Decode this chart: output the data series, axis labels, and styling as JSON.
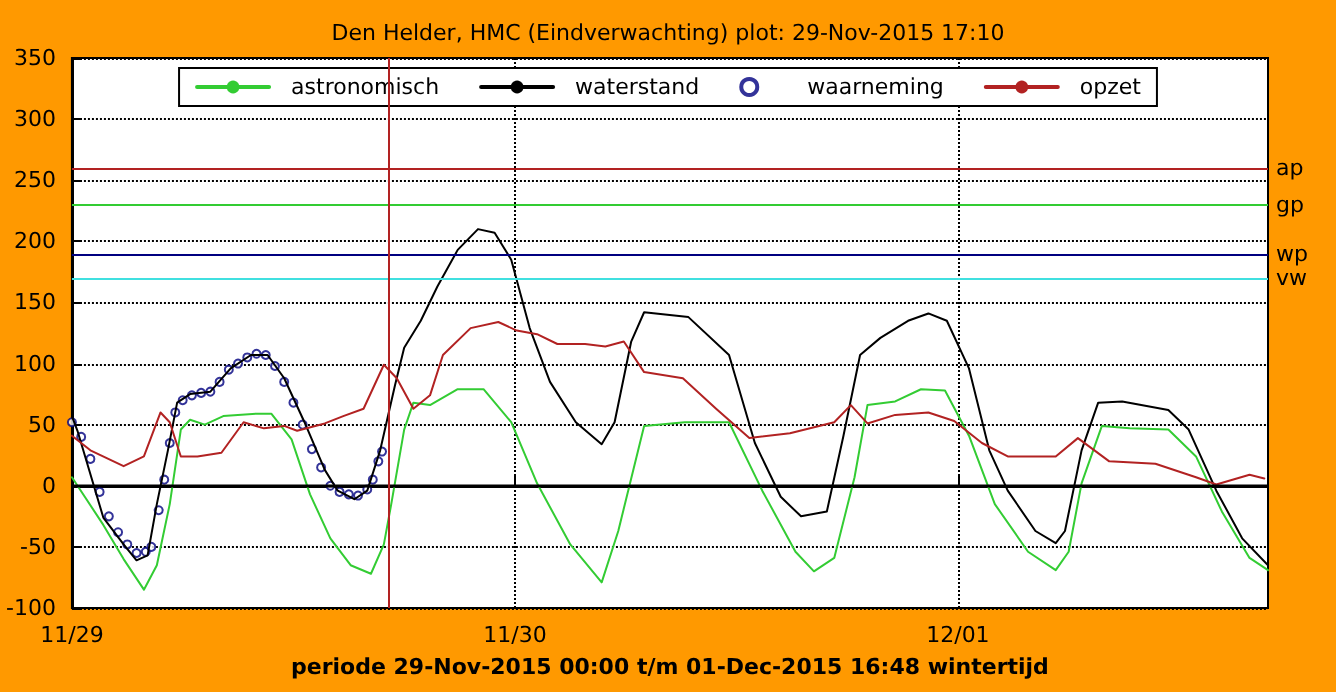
{
  "chart_data": {
    "type": "line",
    "title": "Den Helder, HMC (Eindverwachting) plot: 29-Nov-2015 17:10",
    "xlabel": "periode 29-Nov-2015 00:00 t/m 01-Dec-2015 16:48 wintertijd",
    "xlim": [
      "2015-11-29T00:00",
      "2015-12-01T16:48"
    ],
    "xticks": [
      {
        "value": "2015-11-29",
        "label": "11/29"
      },
      {
        "value": "2015-11-30",
        "label": "11/30"
      },
      {
        "value": "2015-12-01",
        "label": "12/01"
      }
    ],
    "ylim": [
      -100,
      350
    ],
    "yticks": [
      -100,
      -50,
      0,
      50,
      100,
      150,
      200,
      250,
      300,
      350
    ],
    "grid": true,
    "legend": "top",
    "line_style": "solid",
    "series": [
      {
        "name": "astronomisch",
        "marker": "none",
        "color": "#33cc33",
        "x": [
          "2015-11-29T00:00",
          "2015-11-29T01:42",
          "2015-11-29T02:48",
          "2015-11-29T03:54",
          "2015-11-29T04:36",
          "2015-11-29T05:18",
          "2015-11-29T05:54",
          "2015-11-29T06:24",
          "2015-11-29T07:12",
          "2015-11-29T08:12",
          "2015-11-29T10:00",
          "2015-11-29T10:48",
          "2015-11-29T11:54",
          "2015-11-29T12:54",
          "2015-11-29T14:00",
          "2015-11-29T15:06",
          "2015-11-29T16:12",
          "2015-11-29T16:54",
          "2015-11-29T17:18",
          "2015-11-29T18:00",
          "2015-11-29T18:30",
          "2015-11-29T19:24",
          "2015-11-29T20:54",
          "2015-11-29T22:18",
          "2015-11-29T23:48",
          "2015-11-30T01:12",
          "2015-11-30T03:00",
          "2015-11-30T04:42",
          "2015-11-30T05:36",
          "2015-11-30T07:00",
          "2015-11-30T09:12",
          "2015-11-30T11:36",
          "2015-11-30T13:24",
          "2015-11-30T15:12",
          "2015-11-30T16:12",
          "2015-11-30T17:18",
          "2015-11-30T18:24",
          "2015-11-30T19:06",
          "2015-11-30T20:36",
          "2015-11-30T22:00",
          "2015-11-30T23:18",
          "2015-12-01T00:36",
          "2015-12-01T02:00",
          "2015-12-01T03:48",
          "2015-12-01T05:18",
          "2015-12-01T06:00",
          "2015-12-01T06:42",
          "2015-12-01T07:48",
          "2015-12-01T09:18",
          "2015-12-01T11:24",
          "2015-12-01T12:54",
          "2015-12-01T14:18",
          "2015-12-01T15:48",
          "2015-12-01T16:48"
        ],
        "values": [
          7,
          -32,
          -60,
          -85,
          -65,
          -15,
          46,
          54,
          50,
          57,
          59,
          59,
          38,
          -7,
          -43,
          -65,
          -72,
          -48,
          -15,
          46,
          68,
          66,
          79,
          79,
          52,
          2,
          -48,
          -79,
          -37,
          49,
          52,
          52,
          -4,
          -54,
          -70,
          -59,
          7,
          66,
          69,
          79,
          78,
          41,
          -15,
          -54,
          -69,
          -54,
          2,
          49,
          47,
          46,
          24,
          -21,
          -59,
          -69
        ]
      },
      {
        "name": "waterstand",
        "marker": "none",
        "color": "#000000",
        "x": [
          "2015-11-29T00:00",
          "2015-11-29T00:18",
          "2015-11-29T01:42",
          "2015-11-29T02:48",
          "2015-11-29T03:30",
          "2015-11-29T04:06",
          "2015-11-29T04:36",
          "2015-11-29T05:12",
          "2015-11-29T05:42",
          "2015-11-29T06:24",
          "2015-11-29T07:30",
          "2015-11-29T08:36",
          "2015-11-29T09:42",
          "2015-11-29T10:36",
          "2015-11-29T11:30",
          "2015-11-29T12:36",
          "2015-11-29T13:42",
          "2015-11-29T14:24",
          "2015-11-29T15:18",
          "2015-11-29T16:00",
          "2015-11-29T16:42",
          "2015-11-29T17:30",
          "2015-11-29T18:00",
          "2015-11-29T18:54",
          "2015-11-29T19:48",
          "2015-11-29T20:54",
          "2015-11-29T22:00",
          "2015-11-29T22:54",
          "2015-11-29T23:48",
          "2015-11-30T00:48",
          "2015-11-30T01:54",
          "2015-11-30T03:18",
          "2015-11-30T04:42",
          "2015-11-30T05:24",
          "2015-11-30T06:18",
          "2015-11-30T07:00",
          "2015-11-30T09:24",
          "2015-11-30T11:36",
          "2015-11-30T13:00",
          "2015-11-30T14:24",
          "2015-11-30T15:30",
          "2015-11-30T16:54",
          "2015-11-30T17:48",
          "2015-11-30T18:42",
          "2015-11-30T19:48",
          "2015-11-30T21:18",
          "2015-11-30T22:24",
          "2015-11-30T23:24",
          "2015-12-01T00:36",
          "2015-12-01T01:42",
          "2015-12-01T02:42",
          "2015-12-01T04:12",
          "2015-12-01T05:18",
          "2015-12-01T05:48",
          "2015-12-01T06:42",
          "2015-12-01T07:36",
          "2015-12-01T08:54",
          "2015-12-01T11:24",
          "2015-12-01T12:30",
          "2015-12-01T14:00",
          "2015-12-01T15:24",
          "2015-12-01T16:48"
        ],
        "values": [
          57,
          45,
          -26,
          -48,
          -61,
          -57,
          -15,
          29,
          68,
          75,
          77,
          96,
          107,
          107,
          88,
          52,
          13,
          -4,
          -11,
          -4,
          29,
          82,
          113,
          135,
          163,
          193,
          210,
          207,
          185,
          129,
          85,
          52,
          34,
          52,
          118,
          142,
          138,
          107,
          35,
          -9,
          -25,
          -21,
          41,
          107,
          121,
          135,
          141,
          135,
          96,
          29,
          -4,
          -37,
          -47,
          -37,
          29,
          68,
          69,
          62,
          46,
          -4,
          -43,
          -65
        ]
      },
      {
        "name": "waarneming",
        "type": "scatter",
        "marker": "circle",
        "color": "#000080",
        "x": [
          "2015-11-29T00:00",
          "2015-11-29T00:30",
          "2015-11-29T01:00",
          "2015-11-29T01:30",
          "2015-11-29T02:00",
          "2015-11-29T02:30",
          "2015-11-29T03:00",
          "2015-11-29T03:30",
          "2015-11-29T04:00",
          "2015-11-29T04:18",
          "2015-11-29T04:42",
          "2015-11-29T05:00",
          "2015-11-29T05:18",
          "2015-11-29T05:36",
          "2015-11-29T06:00",
          "2015-11-29T06:30",
          "2015-11-29T07:00",
          "2015-11-29T07:30",
          "2015-11-29T08:00",
          "2015-11-29T08:30",
          "2015-11-29T09:00",
          "2015-11-29T09:30",
          "2015-11-29T10:00",
          "2015-11-29T10:30",
          "2015-11-29T11:00",
          "2015-11-29T11:30",
          "2015-11-29T12:00",
          "2015-11-29T12:30",
          "2015-11-29T13:00",
          "2015-11-29T13:30",
          "2015-11-29T14:00",
          "2015-11-29T14:30",
          "2015-11-29T15:00",
          "2015-11-29T15:30",
          "2015-11-29T16:00",
          "2015-11-29T16:18",
          "2015-11-29T16:36",
          "2015-11-29T16:48"
        ],
        "values": [
          52,
          40,
          22,
          -5,
          -25,
          -38,
          -48,
          -55,
          -54,
          -50,
          -20,
          5,
          35,
          60,
          70,
          74,
          76,
          77,
          85,
          95,
          100,
          105,
          108,
          107,
          98,
          85,
          68,
          50,
          30,
          15,
          0,
          -5,
          -7,
          -8,
          -3,
          5,
          20,
          28
        ]
      },
      {
        "name": "opzet",
        "marker": "none",
        "color": "#b22222",
        "x": [
          "2015-11-29T00:00",
          "2015-11-29T01:00",
          "2015-11-29T02:48",
          "2015-11-29T03:54",
          "2015-11-29T04:48",
          "2015-11-29T05:18",
          "2015-11-29T05:54",
          "2015-11-29T06:48",
          "2015-11-29T08:06",
          "2015-11-29T09:18",
          "2015-11-29T10:24",
          "2015-11-29T11:30",
          "2015-11-29T12:12",
          "2015-11-29T13:42",
          "2015-11-29T14:42",
          "2015-11-29T15:48",
          "2015-11-29T16:54",
          "2015-11-29T17:36",
          "2015-11-29T18:30",
          "2015-11-29T19:24",
          "2015-11-29T20:06",
          "2015-11-29T21:36",
          "2015-11-29T23:06",
          "2015-11-30T00:06",
          "2015-11-30T01:12",
          "2015-11-30T02:18",
          "2015-11-30T03:48",
          "2015-11-30T04:54",
          "2015-11-30T05:54",
          "2015-11-30T07:00",
          "2015-11-30T09:06",
          "2015-11-30T10:54",
          "2015-11-30T12:42",
          "2015-11-30T14:54",
          "2015-11-30T17:18",
          "2015-11-30T18:12",
          "2015-11-30T19:06",
          "2015-11-30T20:36",
          "2015-11-30T22:24",
          "2015-11-30T23:48",
          "2015-12-01T01:18",
          "2015-12-01T02:42",
          "2015-12-01T05:18",
          "2015-12-01T06:30",
          "2015-12-01T08:12",
          "2015-12-01T10:42",
          "2015-12-01T12:54",
          "2015-12-01T14:00",
          "2015-12-01T15:48",
          "2015-12-01T16:36"
        ],
        "values": [
          41,
          29,
          16,
          24,
          60,
          52,
          24,
          24,
          27,
          52,
          47,
          49,
          45,
          51,
          57,
          63,
          99,
          88,
          63,
          74,
          107,
          129,
          134,
          127,
          124,
          116,
          116,
          114,
          118,
          93,
          88,
          63,
          39,
          43,
          52,
          66,
          51,
          58,
          60,
          53,
          35,
          24,
          24,
          39,
          20,
          18,
          7,
          1,
          9,
          6
        ]
      }
    ],
    "ref_lines": [
      {
        "axis": "y",
        "value": 260,
        "label": "ap",
        "color": "#b22222"
      },
      {
        "axis": "y",
        "value": 230,
        "label": "gp",
        "color": "#33cc33"
      },
      {
        "axis": "y",
        "value": 190,
        "label": "wp",
        "color": "#000080"
      },
      {
        "axis": "y",
        "value": 170,
        "label": "vw",
        "color": "#40e0e0"
      },
      {
        "axis": "y",
        "value": 0,
        "color": "#000000"
      },
      {
        "axis": "x",
        "value": "2015-11-29T17:10",
        "color": "#b22222"
      }
    ]
  }
}
